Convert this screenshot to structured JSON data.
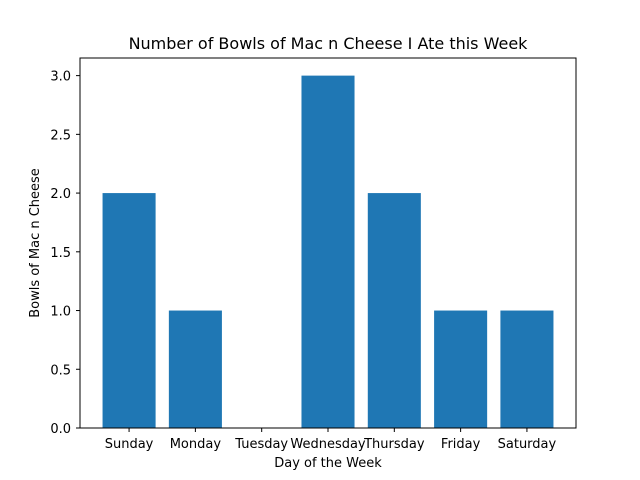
{
  "chart_data": {
    "type": "bar",
    "title": "Number of Bowls of Mac n Cheese I Ate this Week",
    "xlabel": "Day of the Week",
    "ylabel": "Bowls of Mac n Cheese",
    "categories": [
      "Sunday",
      "Monday",
      "Tuesday",
      "Wednesday",
      "Thursday",
      "Friday",
      "Saturday"
    ],
    "values": [
      2,
      1,
      0,
      3,
      2,
      1,
      1
    ],
    "ylim": [
      0,
      3.15
    ],
    "yticks": [
      "0.0",
      "0.5",
      "1.0",
      "1.5",
      "2.0",
      "2.5",
      "3.0"
    ],
    "grid": false,
    "bar_color": "#1f77b4"
  }
}
